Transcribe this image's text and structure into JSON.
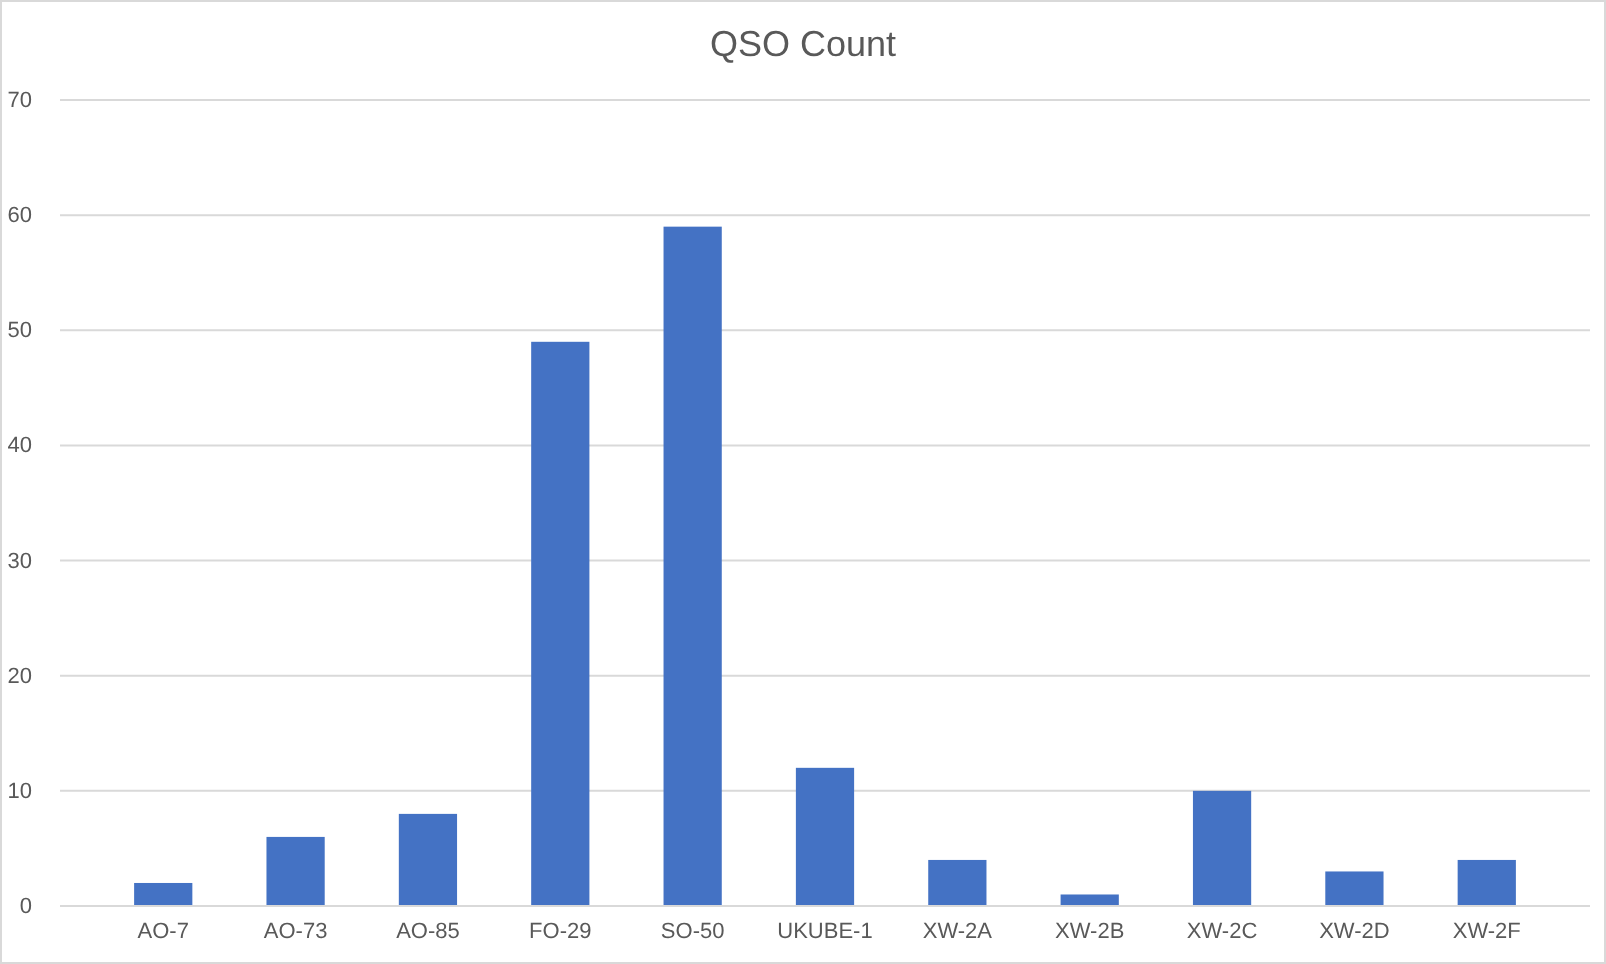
{
  "chart_data": {
    "type": "bar",
    "title": "QSO Count",
    "categories": [
      "AO-7",
      "AO-73",
      "AO-85",
      "FO-29",
      "SO-50",
      "UKUBE-1",
      "XW-2A",
      "XW-2B",
      "XW-2C",
      "XW-2D",
      "XW-2F"
    ],
    "values": [
      2,
      6,
      8,
      49,
      59,
      12,
      4,
      1,
      10,
      3,
      4
    ],
    "color": "#4472c4",
    "ylim": [
      0,
      70
    ],
    "yticks": [
      0,
      10,
      20,
      30,
      40,
      50,
      60,
      70
    ],
    "grid": "y"
  }
}
